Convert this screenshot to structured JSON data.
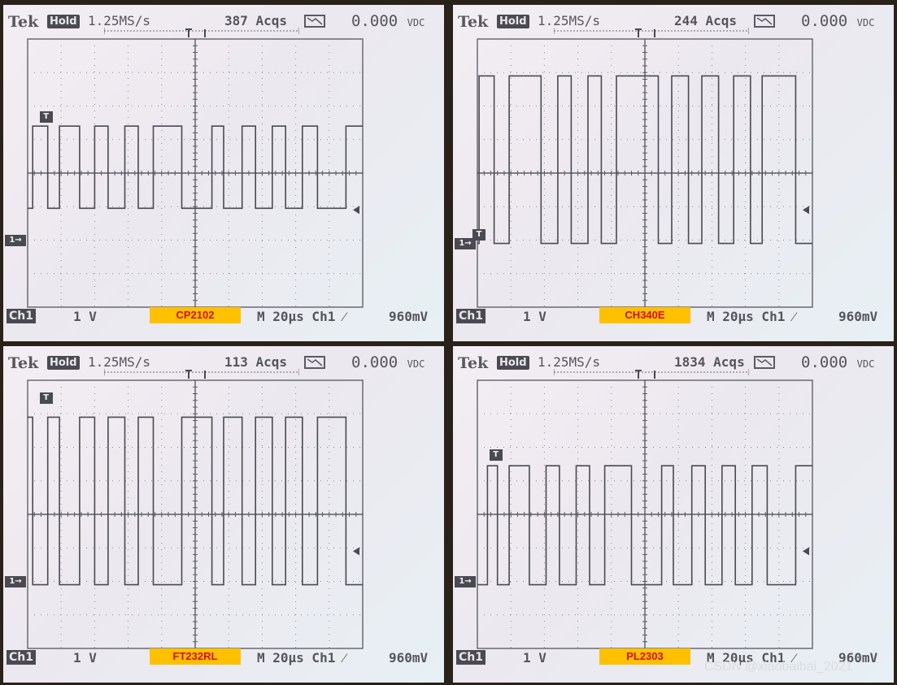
{
  "watermark": "CSDN @xiaobaibai_2021",
  "chart_data": [
    {
      "type": "line",
      "brand": "Tek",
      "mode": "Hold",
      "sample_rate": "1.25MS/s",
      "acqs": "387 Acqs",
      "readout": "0.000",
      "readout_unit": "VDC",
      "channel": "Ch1",
      "volts_div": "1 V",
      "timebase": "M 20µs Ch1 ⁄",
      "trigger_level": "960mV",
      "label": "CP2102",
      "levels": {
        "high": 1.4,
        "low": -1.05
      },
      "ylim": [
        -4,
        4
      ],
      "xlim": [
        0,
        10
      ],
      "x": [
        0.0,
        0.15,
        0.15,
        0.6,
        0.6,
        0.95,
        0.95,
        1.55,
        1.55,
        2.0,
        2.0,
        2.4,
        2.4,
        2.9,
        2.9,
        3.3,
        3.3,
        3.75,
        3.75,
        4.6,
        4.6,
        5.5,
        5.5,
        5.85,
        5.85,
        6.4,
        6.4,
        6.8,
        6.8,
        7.3,
        7.3,
        7.7,
        7.7,
        8.2,
        8.2,
        8.65,
        8.65,
        9.5,
        9.5,
        10.0
      ],
      "y": [
        -1.05,
        -1.05,
        1.4,
        1.4,
        -1.05,
        -1.05,
        1.4,
        1.4,
        -1.05,
        -1.05,
        1.4,
        1.4,
        -1.05,
        -1.05,
        1.4,
        1.4,
        -1.05,
        -1.05,
        1.4,
        1.4,
        -1.05,
        -1.05,
        1.4,
        1.4,
        -1.05,
        -1.05,
        1.4,
        1.4,
        -1.05,
        -1.05,
        1.4,
        1.4,
        -1.05,
        -1.05,
        1.4,
        1.4,
        -1.05,
        -1.05,
        1.4,
        1.4
      ],
      "ch1_marker_level": -2.0,
      "trigger_marker": {
        "x": 0.55,
        "y": 1.45
      },
      "trigger_arrow_level": -1.1,
      "grid": true
    },
    {
      "type": "line",
      "brand": "Tek",
      "mode": "Hold",
      "sample_rate": "1.25MS/s",
      "acqs": "244 Acqs",
      "readout": "0.000",
      "readout_unit": "VDC",
      "channel": "Ch1",
      "volts_div": "1 V",
      "timebase": "M 20µs Ch1 ⁄",
      "trigger_level": "960mV",
      "label": "CH340E",
      "levels": {
        "high": 2.9,
        "low": -2.1
      },
      "ylim": [
        -4,
        4
      ],
      "xlim": [
        0,
        10
      ],
      "x": [
        0.0,
        0.05,
        0.05,
        0.5,
        0.5,
        0.95,
        0.95,
        1.9,
        1.9,
        2.4,
        2.4,
        2.8,
        2.8,
        3.3,
        3.3,
        3.7,
        3.7,
        4.15,
        4.15,
        5.4,
        5.4,
        5.8,
        5.8,
        6.3,
        6.3,
        6.7,
        6.7,
        7.2,
        7.2,
        7.65,
        7.65,
        8.15,
        8.15,
        8.5,
        8.5,
        9.5,
        9.5,
        10.0
      ],
      "y": [
        -2.1,
        -2.1,
        2.9,
        2.9,
        -2.1,
        -2.1,
        2.9,
        2.9,
        -2.1,
        -2.1,
        2.9,
        2.9,
        -2.1,
        -2.1,
        2.9,
        2.9,
        -2.1,
        -2.1,
        2.9,
        2.9,
        -2.1,
        -2.1,
        2.9,
        2.9,
        -2.1,
        -2.1,
        2.9,
        2.9,
        -2.1,
        -2.1,
        2.9,
        2.9,
        -2.1,
        -2.1,
        2.9,
        2.9,
        -2.1,
        -2.1
      ],
      "ch1_marker_level": -2.1,
      "trigger_marker": {
        "x": 0.05,
        "y": -2.05
      },
      "trigger_arrow_level": -1.1,
      "grid": true
    },
    {
      "type": "line",
      "brand": "Tek",
      "mode": "Hold",
      "sample_rate": "1.25MS/s",
      "acqs": "113 Acqs",
      "readout": "0.000",
      "readout_unit": "VDC",
      "channel": "Ch1",
      "volts_div": "1 V",
      "timebase": "M 20µs Ch1 ⁄",
      "trigger_level": "960mV",
      "label": "FT232RL",
      "levels": {
        "high": 2.9,
        "low": -2.1
      },
      "ylim": [
        -4,
        4
      ],
      "xlim": [
        0,
        10
      ],
      "x": [
        0.0,
        0.15,
        0.15,
        0.6,
        0.6,
        0.95,
        0.95,
        1.55,
        1.55,
        2.0,
        2.0,
        2.4,
        2.4,
        2.9,
        2.9,
        3.3,
        3.3,
        3.75,
        3.75,
        4.6,
        4.6,
        5.5,
        5.5,
        5.85,
        5.85,
        6.4,
        6.4,
        6.8,
        6.8,
        7.3,
        7.3,
        7.7,
        7.7,
        8.2,
        8.2,
        8.65,
        8.65,
        9.5,
        9.5,
        10.0
      ],
      "y": [
        2.9,
        2.9,
        -2.1,
        -2.1,
        2.9,
        2.9,
        -2.1,
        -2.1,
        2.9,
        2.9,
        -2.1,
        -2.1,
        2.9,
        2.9,
        -2.1,
        -2.1,
        2.9,
        2.9,
        -2.1,
        -2.1,
        2.9,
        2.9,
        -2.1,
        -2.1,
        2.9,
        2.9,
        -2.1,
        -2.1,
        2.9,
        2.9,
        -2.1,
        -2.1,
        2.9,
        2.9,
        -2.1,
        -2.1,
        2.9,
        2.9,
        -2.1,
        -2.1
      ],
      "ch1_marker_level": -2.0,
      "trigger_marker": {
        "x": 0.55,
        "y": 3.25
      },
      "trigger_arrow_level": -1.1,
      "grid": true
    },
    {
      "type": "line",
      "brand": "Tek",
      "mode": "Hold",
      "sample_rate": "1.25MS/s",
      "acqs": "1834 Acqs",
      "readout": "0.000",
      "readout_unit": "VDC",
      "channel": "Ch1",
      "volts_div": "1 V",
      "timebase": "M 20µs Ch1 ⁄",
      "trigger_level": "960mV",
      "label": "PL2303",
      "levels": {
        "high": 1.45,
        "low": -2.1
      },
      "ylim": [
        -4,
        4
      ],
      "xlim": [
        0,
        10
      ],
      "x": [
        0.0,
        0.3,
        0.3,
        0.6,
        0.6,
        0.95,
        0.95,
        1.55,
        1.55,
        2.05,
        2.05,
        2.45,
        2.45,
        2.95,
        2.95,
        3.35,
        3.35,
        3.8,
        3.8,
        4.6,
        4.6,
        5.5,
        5.5,
        5.85,
        5.85,
        6.4,
        6.4,
        6.8,
        6.8,
        7.3,
        7.3,
        7.7,
        7.7,
        8.2,
        8.2,
        8.65,
        8.65,
        9.5,
        9.5,
        10.0
      ],
      "y": [
        -2.1,
        -2.1,
        1.45,
        1.45,
        -2.1,
        -2.1,
        1.45,
        1.45,
        -2.1,
        -2.1,
        1.45,
        1.45,
        -2.1,
        -2.1,
        1.45,
        1.45,
        -2.1,
        -2.1,
        1.45,
        1.45,
        -2.1,
        -2.1,
        1.45,
        1.45,
        -2.1,
        -2.1,
        1.45,
        1.45,
        -2.1,
        -2.1,
        1.45,
        1.45,
        -2.1,
        -2.1,
        1.45,
        1.45,
        -2.1,
        -2.1,
        1.45,
        1.45
      ],
      "ch1_marker_level": -2.0,
      "trigger_marker": {
        "x": 0.55,
        "y": 1.55
      },
      "trigger_arrow_level": -1.1,
      "grid": true
    }
  ]
}
